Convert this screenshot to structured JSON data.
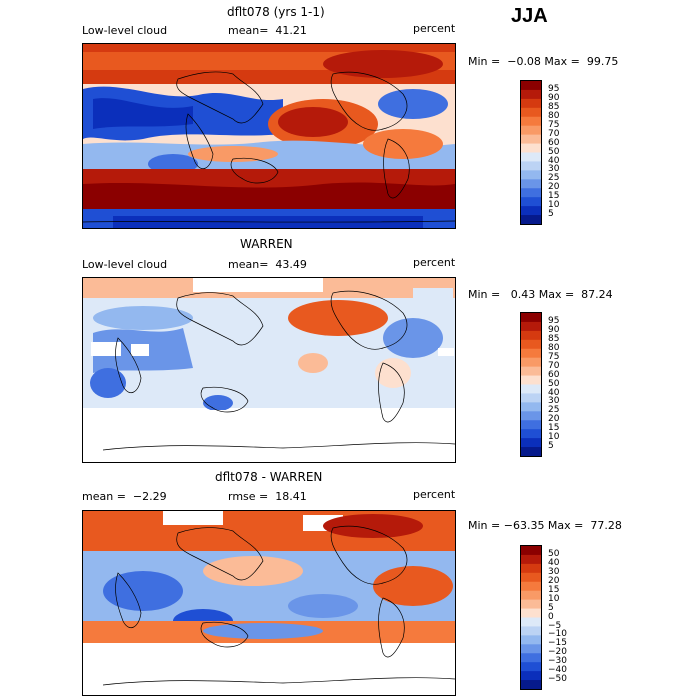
{
  "season": "JJA",
  "panels": [
    {
      "title": "dflt078 (yrs 1-1)",
      "left_label": "Low-level cloud",
      "stat_label": "mean=  41.21",
      "units": "percent",
      "range_text": "Min =  −0.08 Max =  99.75",
      "colorbar_labels": [
        "95",
        "90",
        "85",
        "80",
        "75",
        "70",
        "60",
        "50",
        "40",
        "30",
        "25",
        "20",
        "15",
        "10",
        "5"
      ]
    },
    {
      "title": "WARREN",
      "left_label": "Low-level cloud",
      "stat_label": "mean=  43.49",
      "units": "percent",
      "range_text": "Min =   0.43 Max =  87.24",
      "colorbar_labels": [
        "95",
        "90",
        "85",
        "80",
        "75",
        "70",
        "60",
        "50",
        "40",
        "30",
        "25",
        "20",
        "15",
        "10",
        "5"
      ]
    },
    {
      "title": "dflt078 - WARREN",
      "left_label": "mean =  −2.29",
      "stat_label": "rmse =  18.41",
      "units": "percent",
      "range_text": "Min = −63.35 Max =  77.28",
      "colorbar_labels": [
        "50",
        "40",
        "30",
        "20",
        "15",
        "10",
        "5",
        "0",
        "−5",
        "−10",
        "−15",
        "−20",
        "−30",
        "−40",
        "−50"
      ]
    }
  ],
  "colors": {
    "scale16": [
      "#8b0000",
      "#b51a0a",
      "#d53a10",
      "#e8591f",
      "#f57a3d",
      "#f99a66",
      "#fbbb97",
      "#fde0cf",
      "#dde9f8",
      "#bcd3f4",
      "#93b8ef",
      "#6a95e8",
      "#3f6fe0",
      "#1f4fd4",
      "#0b2fbb",
      "#061a8c"
    ],
    "land_outline": "#000000",
    "missing": "#ffffff"
  }
}
